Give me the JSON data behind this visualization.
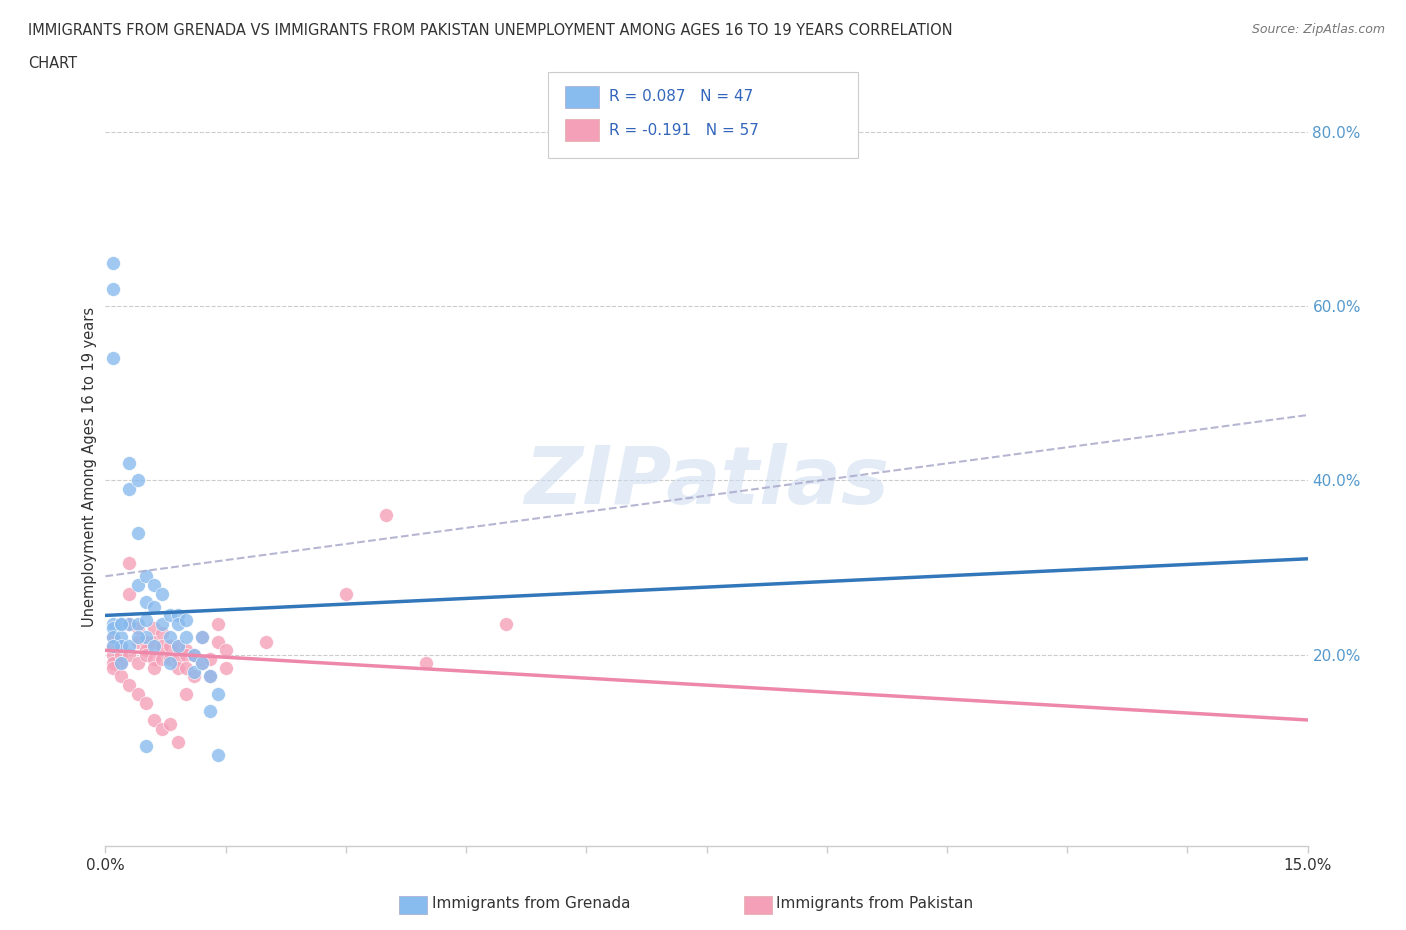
{
  "title_line1": "IMMIGRANTS FROM GRENADA VS IMMIGRANTS FROM PAKISTAN UNEMPLOYMENT AMONG AGES 16 TO 19 YEARS CORRELATION",
  "title_line2": "CHART",
  "source": "Source: ZipAtlas.com",
  "ylabel": "Unemployment Among Ages 16 to 19 years",
  "xlim": [
    0.0,
    0.15
  ],
  "ylim": [
    -0.02,
    0.85
  ],
  "y_ticks_right": [
    0.2,
    0.4,
    0.6,
    0.8
  ],
  "y_tick_labels_right": [
    "20.0%",
    "40.0%",
    "60.0%",
    "80.0%"
  ],
  "grenada_color": "#88bbee",
  "pakistan_color": "#f4a0b8",
  "grenada_line_color": "#3377bb",
  "pakistan_line_color": "#ee88aa",
  "dashed_line_color": "#aaaacc",
  "legend_grenada_label": "R = 0.087   N = 47",
  "legend_pakistan_label": "R = -0.191   N = 57",
  "legend_label1": "Immigrants from Grenada",
  "legend_label2": "Immigrants from Pakistan",
  "watermark": "ZIPatlas",
  "background_color": "#ffffff",
  "grid_color": "#cccccc",
  "title_color": "#333333",
  "right_tick_color": "#5599cc",
  "grenada_line_y0": 0.245,
  "grenada_line_y1": 0.31,
  "pakistan_line_y0": 0.205,
  "pakistan_line_y1": 0.125,
  "dashed_line_y0": 0.29,
  "dashed_line_y1": 0.475,
  "grenada_scatter_x": [
    0.001,
    0.001,
    0.001,
    0.001,
    0.001,
    0.002,
    0.002,
    0.002,
    0.002,
    0.003,
    0.003,
    0.003,
    0.004,
    0.004,
    0.004,
    0.004,
    0.005,
    0.005,
    0.005,
    0.005,
    0.006,
    0.006,
    0.006,
    0.007,
    0.007,
    0.008,
    0.008,
    0.009,
    0.009,
    0.009,
    0.01,
    0.01,
    0.011,
    0.011,
    0.012,
    0.012,
    0.013,
    0.013,
    0.014,
    0.014,
    0.001,
    0.001,
    0.002,
    0.003,
    0.004,
    0.005,
    0.008
  ],
  "grenada_scatter_y": [
    0.65,
    0.62,
    0.235,
    0.23,
    0.22,
    0.235,
    0.22,
    0.21,
    0.19,
    0.42,
    0.39,
    0.235,
    0.4,
    0.34,
    0.28,
    0.235,
    0.29,
    0.26,
    0.24,
    0.22,
    0.28,
    0.255,
    0.21,
    0.27,
    0.235,
    0.245,
    0.22,
    0.245,
    0.235,
    0.21,
    0.24,
    0.22,
    0.2,
    0.18,
    0.22,
    0.19,
    0.175,
    0.135,
    0.155,
    0.085,
    0.54,
    0.21,
    0.235,
    0.21,
    0.22,
    0.095,
    0.19
  ],
  "pakistan_scatter_x": [
    0.001,
    0.001,
    0.001,
    0.001,
    0.002,
    0.002,
    0.002,
    0.003,
    0.003,
    0.003,
    0.003,
    0.004,
    0.004,
    0.004,
    0.005,
    0.005,
    0.005,
    0.006,
    0.006,
    0.006,
    0.006,
    0.007,
    0.007,
    0.007,
    0.008,
    0.008,
    0.009,
    0.009,
    0.009,
    0.01,
    0.01,
    0.01,
    0.011,
    0.011,
    0.012,
    0.012,
    0.013,
    0.013,
    0.014,
    0.014,
    0.015,
    0.015,
    0.02,
    0.03,
    0.035,
    0.04,
    0.05,
    0.001,
    0.002,
    0.003,
    0.004,
    0.005,
    0.006,
    0.007,
    0.008,
    0.009,
    0.01
  ],
  "pakistan_scatter_y": [
    0.22,
    0.21,
    0.2,
    0.19,
    0.21,
    0.2,
    0.19,
    0.305,
    0.27,
    0.235,
    0.2,
    0.23,
    0.215,
    0.19,
    0.215,
    0.205,
    0.2,
    0.23,
    0.215,
    0.195,
    0.185,
    0.225,
    0.21,
    0.195,
    0.21,
    0.195,
    0.21,
    0.195,
    0.185,
    0.205,
    0.2,
    0.185,
    0.2,
    0.175,
    0.22,
    0.19,
    0.195,
    0.175,
    0.235,
    0.215,
    0.205,
    0.185,
    0.215,
    0.27,
    0.36,
    0.19,
    0.235,
    0.185,
    0.175,
    0.165,
    0.155,
    0.145,
    0.125,
    0.115,
    0.12,
    0.1,
    0.155
  ]
}
